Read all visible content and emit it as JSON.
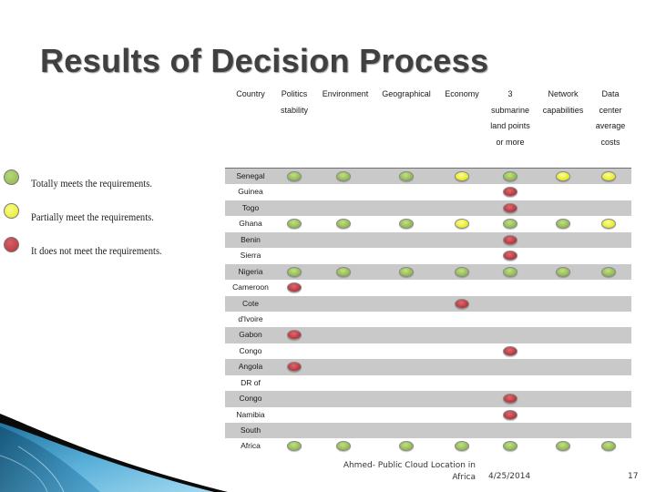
{
  "slide": {
    "title": "Results of Decision Process",
    "footer_text": "Ahmed- Public Cloud Location in Africa",
    "footer_date": "4/25/2014",
    "page_number": "17"
  },
  "legend": [
    {
      "status": "green",
      "label": "Totally meets the requirements."
    },
    {
      "status": "yellow",
      "label": "Partially meet the requirements."
    },
    {
      "status": "red",
      "label": "It does not meet the requirements."
    }
  ],
  "colors": {
    "green": "#8fb74b",
    "yellow": "#e6ea1e",
    "red": "#b3343b"
  },
  "table": {
    "columns": [
      "Country",
      "Politics stability",
      "Environment",
      "Geographical",
      "Economy",
      "3 submarine land points or more",
      "Network capabilities",
      "Data center average costs"
    ],
    "rows": [
      {
        "country": "Senegal",
        "cells": [
          "green",
          "green",
          "green",
          "yellow",
          "green",
          "yellow",
          "yellow"
        ]
      },
      {
        "country": "Guinea",
        "cells": [
          "",
          "",
          "",
          "",
          "red",
          "",
          ""
        ]
      },
      {
        "country": "Togo",
        "cells": [
          "",
          "",
          "",
          "",
          "red",
          "",
          ""
        ]
      },
      {
        "country": "Ghana",
        "cells": [
          "green",
          "green",
          "green",
          "yellow",
          "green",
          "green",
          "yellow"
        ]
      },
      {
        "country": "Benin",
        "cells": [
          "",
          "",
          "",
          "",
          "red",
          "",
          ""
        ]
      },
      {
        "country": "Sierra",
        "cells": [
          "",
          "",
          "",
          "",
          "red",
          "",
          ""
        ]
      },
      {
        "country": "Nigeria",
        "cells": [
          "green",
          "green",
          "green",
          "green",
          "green",
          "green",
          "green"
        ]
      },
      {
        "country": "Cameroon",
        "cells": [
          "red",
          "",
          "",
          "",
          "",
          "",
          ""
        ]
      },
      {
        "country": "Cote",
        "cells": [
          "",
          "",
          "",
          "red",
          "",
          "",
          ""
        ]
      },
      {
        "country": "d'Ivoire",
        "cells": [
          "",
          "",
          "",
          "",
          "",
          "",
          ""
        ]
      },
      {
        "country": "Gabon",
        "cells": [
          "red",
          "",
          "",
          "",
          "",
          "",
          ""
        ]
      },
      {
        "country": "Congo",
        "cells": [
          "",
          "",
          "",
          "",
          "red",
          "",
          ""
        ]
      },
      {
        "country": "Angola",
        "cells": [
          "red",
          "",
          "",
          "",
          "",
          "",
          ""
        ]
      },
      {
        "country": "DR of",
        "cells": [
          "",
          "",
          "",
          "",
          "",
          "",
          ""
        ]
      },
      {
        "country": "Congo",
        "cells": [
          "",
          "",
          "",
          "",
          "red",
          "",
          ""
        ]
      },
      {
        "country": "Namibia",
        "cells": [
          "",
          "",
          "",
          "",
          "red",
          "",
          ""
        ]
      },
      {
        "country": "South",
        "cells": [
          "",
          "",
          "",
          "",
          "",
          "",
          ""
        ]
      },
      {
        "country": "Africa",
        "cells": [
          "green",
          "green",
          "green",
          "green",
          "green",
          "green",
          "green"
        ]
      }
    ]
  }
}
